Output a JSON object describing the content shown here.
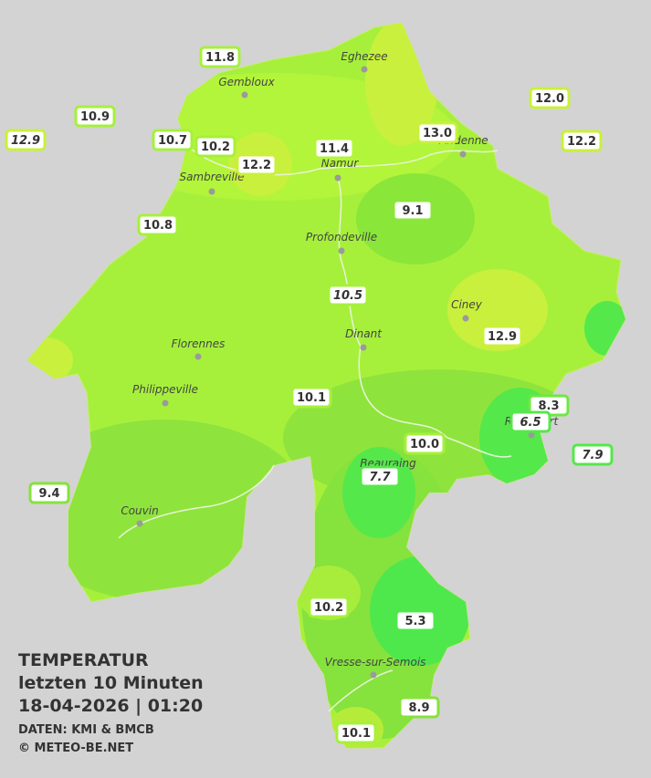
{
  "title": [
    "TEMPERATUR",
    "letzten 10 Minuten",
    "18-04-2026  |  01:20"
  ],
  "credits": [
    "DATEN: KMI & BMCB",
    "© METEO-BE.NET"
  ],
  "cities": [
    "Eghezee",
    "Gembloux",
    "Andenne",
    "Namur",
    "Sambreville",
    "Profondeville",
    "Ciney",
    "Florennes",
    "Dinant",
    "Philippeville",
    "Rochefort",
    "Beauraing",
    "Couvin",
    "Vresse-sur-Semois"
  ],
  "stations": [
    "11.8",
    "10.9",
    "12.9",
    "10.7",
    "10.2",
    "12.2",
    "11.4",
    "13.0",
    "12.0",
    "12.2",
    "9.1",
    "10.8",
    "10.5",
    "12.9",
    "10.1",
    "8.3",
    "6.5",
    "10.0",
    "7.9",
    "7.7",
    "9.4",
    "10.2",
    "5.3",
    "8.9",
    "10.1"
  ]
}
